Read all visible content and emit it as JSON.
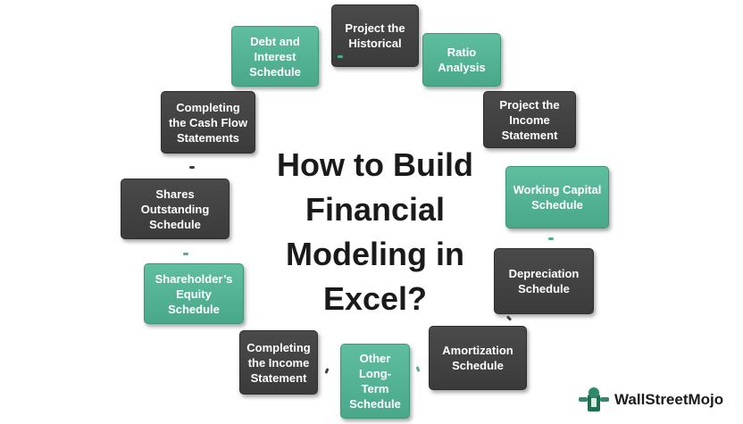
{
  "title_lines": [
    "How to Build",
    "Financial",
    "Modeling in",
    "Excel?"
  ],
  "steps": [
    {
      "label": "Project the Historical",
      "color": "dark"
    },
    {
      "label": "Ratio Analysis",
      "color": "teal"
    },
    {
      "label": "Project the Income Statement",
      "color": "dark"
    },
    {
      "label": "Working Capital Schedule",
      "color": "teal"
    },
    {
      "label": "Depreciation Schedule",
      "color": "dark"
    },
    {
      "label": "Amortization Schedule",
      "color": "dark"
    },
    {
      "label": "Other Long-Term Schedule",
      "color": "teal"
    },
    {
      "label": "Completing the Income Statement",
      "color": "dark"
    },
    {
      "label": "Shareholder’s Equity Schedule",
      "color": "teal"
    },
    {
      "label": "Shares Outstanding Schedule",
      "color": "dark"
    },
    {
      "label": "Completing the Cash Flow Statements",
      "color": "dark"
    },
    {
      "label": "Debt and Interest Schedule",
      "color": "teal"
    }
  ],
  "logo": {
    "text": "WallStreetMojo",
    "icon": "wallstreetmojo-logo-icon"
  },
  "colors": {
    "dark": "#404040",
    "teal": "#52b394"
  }
}
